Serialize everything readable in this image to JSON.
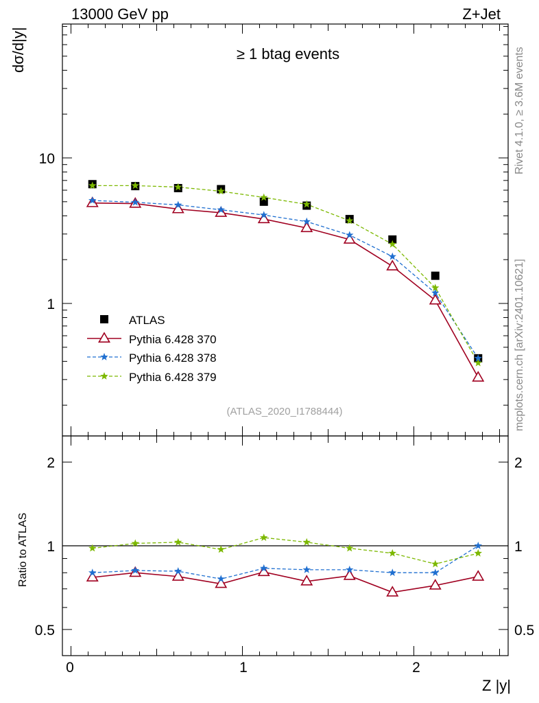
{
  "header": {
    "left": "13000 GeV pp",
    "right": "Z+Jet",
    "subtitle": "≥ 1 btag events",
    "ref_id": "(ATLAS_2020_I1788444)",
    "side_top": "Rivet 4.1.0, ≥ 3.6M events",
    "side_bottom": "mcplots.cern.ch [arXiv:2401.10621]"
  },
  "chart_data": [
    {
      "type": "scatter",
      "title": "≥ 1 btag events",
      "ylabel": "dσ/d|y|",
      "yscale": "log",
      "ylim": [
        0.17,
        100
      ],
      "xlim": [
        -0.05,
        2.55
      ],
      "yticks": [
        "10",
        "1"
      ],
      "x": [
        0.125,
        0.375,
        0.625,
        0.875,
        1.125,
        1.375,
        1.625,
        1.875,
        2.125,
        2.375
      ],
      "series": [
        {
          "name": "ATLAS",
          "color": "#000000",
          "marker": "square",
          "values": [
            6.6,
            6.4,
            6.2,
            6.1,
            5.0,
            4.7,
            3.8,
            2.75,
            1.55,
            0.42
          ]
        },
        {
          "name": "Pythia 6.428 370",
          "color": "#a00020",
          "marker": "triangle",
          "line": "solid",
          "values": [
            4.9,
            4.85,
            4.45,
            4.2,
            3.8,
            3.3,
            2.75,
            1.8,
            1.05,
            0.31
          ]
        },
        {
          "name": "Pythia 6.428 378",
          "color": "#1f6fd0",
          "marker": "star",
          "line": "dashed",
          "values": [
            5.1,
            4.95,
            4.75,
            4.4,
            4.05,
            3.65,
            2.95,
            2.1,
            1.18,
            0.42
          ]
        },
        {
          "name": "Pythia 6.428 379",
          "color": "#7cb800",
          "marker": "star",
          "line": "dashed",
          "values": [
            6.45,
            6.45,
            6.3,
            5.9,
            5.35,
            4.8,
            3.7,
            2.55,
            1.28,
            0.39
          ]
        }
      ]
    },
    {
      "type": "line",
      "ylabel": "Ratio to ATLAS",
      "xlabel": "Z |y|",
      "yscale": "log",
      "ylim": [
        0.42,
        2.5
      ],
      "xlim": [
        -0.05,
        2.55
      ],
      "yticks": [
        "2",
        "1",
        "0.5"
      ],
      "xticks": [
        "0",
        "1",
        "2"
      ],
      "x": [
        0.125,
        0.375,
        0.625,
        0.875,
        1.125,
        1.375,
        1.625,
        1.875,
        2.125,
        2.375
      ],
      "series": [
        {
          "name": "Pythia 6.428 370",
          "color": "#a00020",
          "marker": "triangle",
          "line": "solid",
          "values": [
            0.77,
            0.8,
            0.775,
            0.73,
            0.805,
            0.745,
            0.78,
            0.68,
            0.72,
            0.775
          ]
        },
        {
          "name": "Pythia 6.428 378",
          "color": "#1f6fd0",
          "marker": "star",
          "line": "dashed",
          "values": [
            0.8,
            0.815,
            0.81,
            0.76,
            0.83,
            0.82,
            0.82,
            0.8,
            0.8,
            1.0
          ]
        },
        {
          "name": "Pythia 6.428 379",
          "color": "#7cb800",
          "marker": "star",
          "line": "dashed",
          "values": [
            0.98,
            1.02,
            1.03,
            0.97,
            1.07,
            1.03,
            0.98,
            0.94,
            0.86,
            0.94
          ]
        }
      ]
    }
  ]
}
